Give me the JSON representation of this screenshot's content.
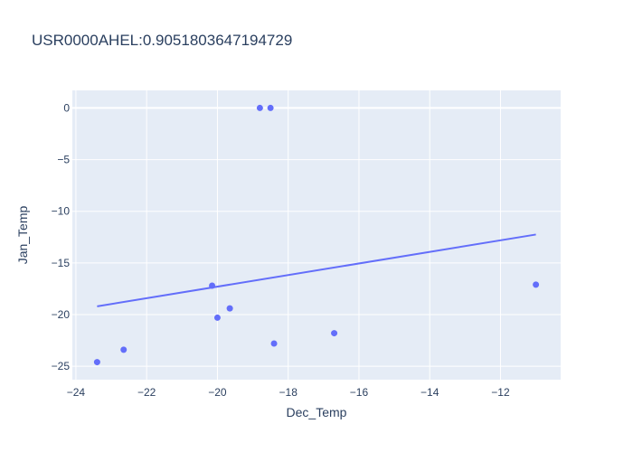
{
  "chart_data": {
    "type": "scatter",
    "title": "USR0000AHEL:0.9051803647194729",
    "xlabel": "Dec_Temp",
    "ylabel": "Jan_Temp",
    "xlim": [
      -24.1,
      -10.3
    ],
    "ylim": [
      -26.3,
      1.7
    ],
    "xticks": [
      -24,
      -22,
      -20,
      -18,
      -16,
      -14,
      -12
    ],
    "yticks": [
      0,
      -5,
      -10,
      -15,
      -20,
      -25
    ],
    "grid": true,
    "legend": "none",
    "series": [
      {
        "mode": "markers",
        "color": "#636efa",
        "x": [
          -23.4,
          -22.65,
          -20.15,
          -20.0,
          -19.65,
          -18.8,
          -18.5,
          -18.4,
          -16.7,
          -11.0
        ],
        "y": [
          -24.6,
          -23.4,
          -17.2,
          -20.3,
          -19.4,
          0.0,
          0.0,
          -22.8,
          -21.8,
          -17.1
        ]
      },
      {
        "mode": "lines",
        "color": "#636efa",
        "x": [
          -23.4,
          -11.0
        ],
        "y": [
          -19.2,
          -12.25
        ]
      }
    ],
    "colors": {
      "plot_bg": "#e5ecf6",
      "grid": "#ffffff",
      "text": "#2a3f5f"
    }
  }
}
